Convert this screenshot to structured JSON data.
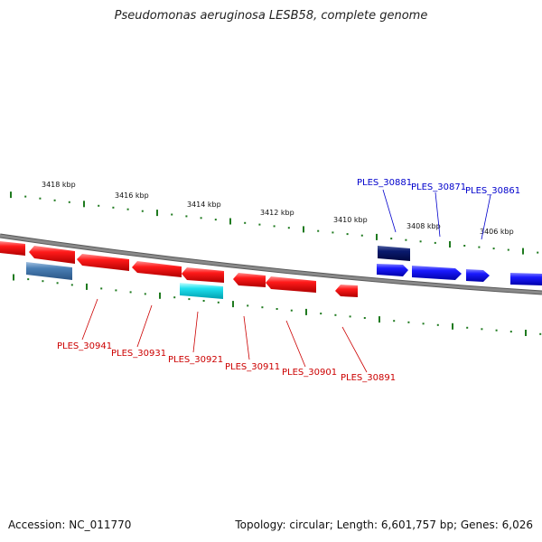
{
  "title": "Pseudomonas aeruginosa LESB58, complete genome",
  "footer": {
    "accession": "Accession: NC_011770",
    "topology": "Topology: circular; Length: 6,601,757 bp; Genes: 6,026"
  },
  "colors": {
    "backbone": "#8a8a8a",
    "tick": "#1f7a1f",
    "forward_gene": "#1a1aff",
    "reverse_gene": "#ff1a1a",
    "forward_label": "#0000cc",
    "reverse_label": "#cc0000",
    "steel_gene": "#4a7fb5",
    "cyan_gene": "#1fe0ee",
    "navy_gene": "#0a1a6e"
  },
  "coordinates": [
    {
      "label": "3418 kbp"
    },
    {
      "label": "3416 kbp"
    },
    {
      "label": "3414 kbp"
    },
    {
      "label": "3412 kbp"
    },
    {
      "label": "3410 kbp"
    },
    {
      "label": "3408 kbp"
    },
    {
      "label": "3406 kbp"
    }
  ],
  "gene_labels": [
    {
      "name": "PLES_30881",
      "strand": "forward"
    },
    {
      "name": "PLES_30871",
      "strand": "forward"
    },
    {
      "name": "PLES_30861",
      "strand": "forward"
    },
    {
      "name": "PLES_30941",
      "strand": "reverse"
    },
    {
      "name": "PLES_30931",
      "strand": "reverse"
    },
    {
      "name": "PLES_30921",
      "strand": "reverse"
    },
    {
      "name": "PLES_30911",
      "strand": "reverse"
    },
    {
      "name": "PLES_30901",
      "strand": "reverse"
    },
    {
      "name": "PLES_30891",
      "strand": "reverse"
    }
  ]
}
